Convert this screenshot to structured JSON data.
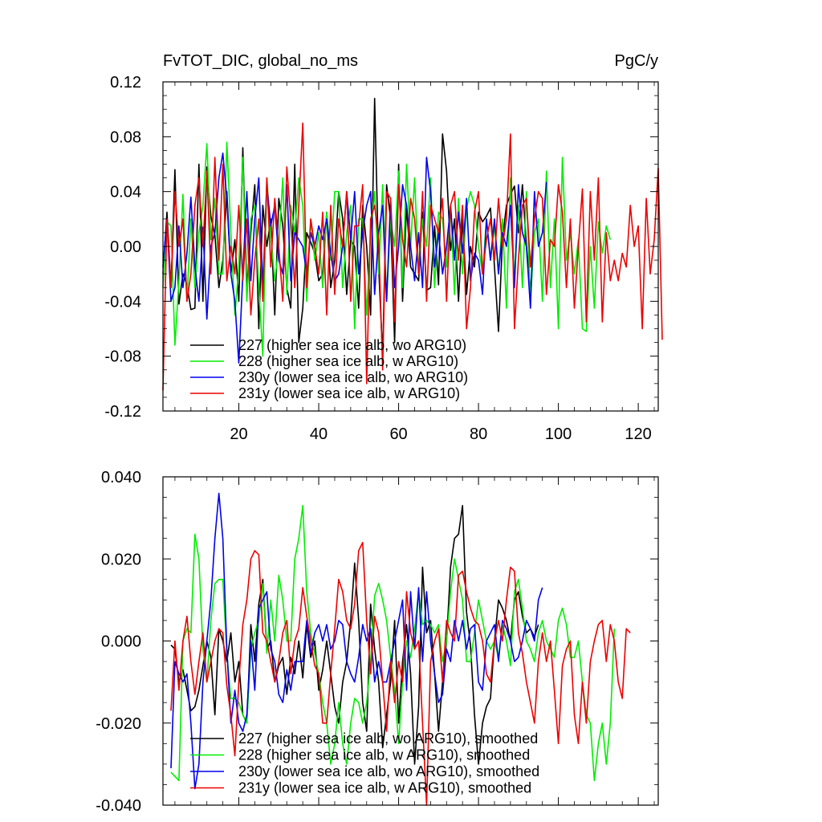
{
  "figure": {
    "title_left": "FvTOT_DIC, global_no_ms",
    "title_right": "PgC/y"
  },
  "chart_data": [
    {
      "type": "line",
      "title": "FvTOT_DIC, global_no_ms",
      "units": "PgC/y",
      "xlim": [
        1,
        125
      ],
      "ylim": [
        -0.12,
        0.12
      ],
      "xticks": [
        20,
        40,
        60,
        80,
        100,
        120
      ],
      "xtick_labels": [
        "20",
        "40",
        "60",
        "80",
        "100",
        "120"
      ],
      "yticks": [
        -0.12,
        -0.08,
        -0.04,
        0.0,
        0.04,
        0.08,
        0.12
      ],
      "ytick_labels": [
        "-0.12",
        "-0.08",
        "-0.04",
        "0.00",
        "0.04",
        "0.08",
        "0.12"
      ],
      "legend_position": "bottom-left",
      "series": [
        {
          "name": "227 (higher sea ice alb, wo ARG10)",
          "color": "#000000",
          "x_start": 1,
          "values": [
            -0.02,
            0.025,
            -0.03,
            0.056,
            -0.042,
            -0.02,
            -0.028,
            -0.046,
            -0.045,
            0.06,
            -0.04,
            0.058,
            0.022,
            0.008,
            -0.03,
            -0.01,
            0.04,
            -0.02,
            0.005,
            -0.04,
            0.072,
            -0.03,
            0.01,
            0.045,
            -0.06,
            0.03,
            0.0,
            0.02,
            -0.05,
            0.035,
            0.015,
            -0.03,
            -0.045,
            0.06,
            -0.07,
            -0.045,
            0.01,
            0.003,
            -0.005,
            -0.025,
            -0.02,
            0.025,
            -0.03,
            -0.01,
            0.04,
            0.02,
            -0.035,
            0.005,
            0.0,
            -0.045,
            0.03,
            0.0,
            -0.05,
            0.108,
            -0.015,
            -0.08,
            0.045,
            0.02,
            -0.07,
            0.06,
            -0.04,
            0.03,
            -0.015,
            -0.02,
            -0.025,
            0.025,
            -0.032,
            -0.03,
            0.015,
            -0.028,
            0.082,
            0.055,
            -0.003,
            0.02,
            -0.04,
            0.02,
            -0.035,
            0.0,
            -0.015,
            0.025,
            0.018,
            0.022,
            0.028,
            -0.015,
            -0.062,
            0.005,
            0.03,
            0.038,
            0.044,
            0.01,
            0.045,
            0.0,
            -0.03
          ]
        },
        {
          "name": "228 (higher sea ice alb, w ARG10)",
          "color": "#00ee00",
          "x_start": 1,
          "values": [
            -0.03,
            0.018,
            0.015,
            -0.072,
            -0.025,
            0.038,
            -0.04,
            0.02,
            -0.03,
            0.01,
            0.03,
            0.075,
            0.005,
            0.035,
            -0.02,
            -0.02,
            0.076,
            0.01,
            -0.05,
            -0.015,
            0.065,
            -0.04,
            0.02,
            0.03,
            -0.03,
            -0.08,
            0.05,
            0.008,
            -0.025,
            0.0,
            0.05,
            -0.035,
            0.03,
            0.01,
            0.05,
            0.03,
            -0.04,
            0.02,
            -0.01,
            0.01,
            -0.03,
            0.025,
            -0.01,
            0.04,
            0.04,
            -0.03,
            0.01,
            0.03,
            -0.06,
            0.02,
            0.02,
            -0.05,
            0.01,
            0.04,
            -0.02,
            0.045,
            -0.04,
            0.02,
            0.0,
            0.055,
            -0.03,
            0.06,
            0.0,
            0.05,
            -0.02,
            0.02,
            0.0,
            0.05,
            -0.03,
            0.025,
            0.02,
            -0.015,
            0.03,
            -0.035,
            0.035,
            -0.02,
            0.028,
            0.04,
            0.03,
            0.0,
            -0.02,
            0.02,
            -0.01,
            0.015,
            -0.02,
            0.02,
            -0.045,
            0.05,
            -0.025,
            0.03,
            -0.03,
            0.04,
            -0.04,
            0.01,
            0.02,
            -0.04,
            0.055,
            -0.03,
            0.02,
            -0.06,
            0.065,
            -0.01,
            0.01,
            -0.02,
            0.005,
            -0.06,
            -0.062,
            0.0,
            -0.045,
            0.018,
            -0.005,
            0.015,
            0.005
          ]
        },
        {
          "name": "230y (lower sea ice alb, wo ARG10)",
          "color": "#0000ee",
          "x_start": 1,
          "values": [
            -0.015,
            0.02,
            -0.04,
            -0.03,
            0.015,
            -0.03,
            -0.005,
            0.036,
            -0.015,
            -0.04,
            0.014,
            -0.053,
            0.0,
            0.01,
            0.05,
            0.068,
            0.035,
            -0.02,
            -0.04,
            -0.085,
            -0.02,
            0.04,
            -0.025,
            0.02,
            0.05,
            -0.03,
            0.045,
            0.015,
            0.03,
            -0.01,
            -0.02,
            0.045,
            -0.025,
            0.01,
            0.005,
            0.0,
            -0.02,
            0.01,
            0.0,
            0.015,
            0.005,
            0.02,
            -0.005,
            -0.025,
            -0.02,
            0.0,
            0.04,
            0.005,
            0.04,
            -0.02,
            0.01,
            0.03,
            0.04,
            -0.035,
            0.01,
            0.03,
            -0.04,
            0.035,
            -0.03,
            0.0,
            0.045,
            0.03,
            0.0,
            -0.025,
            0.01,
            -0.03,
            0.065,
            0.04,
            -0.015,
            0.01,
            -0.02,
            0.0,
            0.03,
            -0.01,
            0.025,
            -0.005,
            0.035,
            -0.025,
            -0.005,
            -0.01,
            -0.035,
            0.02,
            -0.01,
            0.02,
            -0.02,
            0.01,
            0.0,
            0.03,
            -0.03,
            0.045,
            0.01,
            0.0,
            -0.045,
            0.04,
            0.0,
            0.01,
            0.047
          ]
        },
        {
          "name": "231y (lower sea ice alb, w ARG10)",
          "color": "#ee0000",
          "x_start": 1,
          "values": [
            -0.105,
            0.02,
            -0.03,
            0.04,
            0.0,
            0.02,
            -0.04,
            -0.02,
            0.03,
            0.05,
            0.0,
            0.055,
            -0.02,
            0.065,
            -0.01,
            0.06,
            -0.025,
            0.0,
            -0.02,
            0.03,
            -0.025,
            0.02,
            -0.05,
            -0.01,
            0.02,
            -0.04,
            0.05,
            -0.015,
            0.035,
            0.0,
            -0.04,
            0.058,
            0.02,
            -0.03,
            0.03,
            0.09,
            -0.03,
            0.02,
            0.0,
            -0.02,
            0.025,
            -0.05,
            0.03,
            -0.035,
            0.02,
            0.0,
            0.04,
            -0.04,
            0.015,
            0.015,
            0.045,
            -0.1,
            0.02,
            0.03,
            0.005,
            -0.09,
            0.04,
            0.035,
            -0.055,
            0.045,
            0.005,
            -0.015,
            0.035,
            0.02,
            -0.02,
            0.04,
            -0.04,
            0.03,
            0.02,
            0.01,
            0.035,
            -0.04,
            0.03,
            0.04,
            -0.01,
            0.03,
            -0.06,
            -0.03,
            0.025,
            0.04,
            -0.02,
            0.005,
            0.02,
            -0.01,
            0.035,
            0.0,
            0.02,
            0.082,
            -0.06,
            -0.01,
            0.03,
            0.035,
            -0.015,
            0.02,
            0.04,
            0.035,
            -0.035,
            0.005,
            0.0,
            0.045,
            0.025,
            -0.03,
            0.02,
            -0.045,
            0.0,
            0.042,
            -0.055,
            0.04,
            -0.01,
            0.05,
            -0.055,
            0.01,
            -0.025,
            -0.01,
            -0.025,
            -0.005,
            -0.015,
            0.03,
            0.0,
            0.015,
            -0.06,
            0.035,
            -0.02,
            0.005,
            0.057,
            -0.068
          ]
        }
      ]
    },
    {
      "type": "line",
      "title": "",
      "xlim": [
        1,
        125
      ],
      "ylim": [
        -0.04,
        0.04
      ],
      "xticks": [
        20,
        40,
        60,
        80,
        100,
        120
      ],
      "xtick_labels": [],
      "yticks": [
        -0.04,
        -0.02,
        0.0,
        0.02,
        0.04
      ],
      "ytick_labels": [
        "-0.040",
        "-0.020",
        "0.000",
        "0.020",
        "0.040"
      ],
      "legend_position": "bottom-left",
      "series": [
        {
          "name": "227 (higher sea ice alb, wo ARG10), smoothed",
          "color": "#000000",
          "x_start": 3,
          "values": [
            -0.001,
            -0.002,
            -0.01,
            -0.007,
            -0.012,
            -0.017,
            -0.016,
            -0.012,
            -0.006,
            0.0,
            -0.004,
            -0.018,
            0.003,
            0.0,
            -0.005,
            0.002,
            -0.01,
            -0.005,
            -0.018,
            -0.02,
            0.004,
            -0.005,
            0.009,
            0.015,
            -0.002,
            0.0,
            -0.01,
            -0.006,
            -0.004,
            -0.013,
            -0.004,
            -0.008,
            0.0,
            -0.009,
            0.004,
            -0.004,
            0.0,
            -0.012,
            -0.007,
            0.0,
            -0.008,
            -0.016,
            -0.02,
            -0.01,
            -0.005,
            0.005,
            0.019,
            0.005,
            -0.015,
            -0.022,
            0.009,
            -0.002,
            -0.01,
            -0.026,
            -0.018,
            -0.01,
            0.005,
            -0.02,
            -0.005,
            0.004,
            -0.008,
            -0.03,
            -0.016,
            0.018,
            0.002,
            0.005,
            -0.008,
            -0.022,
            -0.01,
            0.0,
            0.018,
            0.025,
            0.026,
            0.033,
            0.007,
            -0.001,
            -0.018,
            -0.03,
            -0.02,
            -0.016,
            -0.014,
            0.0,
            0.01,
            0.008,
            0.005,
            0.0,
            0.01,
            0.012,
            0.006,
            0.002,
            0.003,
            0.001,
            0.004
          ]
        },
        {
          "name": "228 (higher sea ice alb, w ARG10), smoothed",
          "color": "#00ee00",
          "x_start": 3,
          "values": [
            -0.032,
            -0.033,
            -0.034,
            0.0,
            0.003,
            0.002,
            0.026,
            0.02,
            -0.002,
            -0.01,
            0.005,
            0.014,
            0.015,
            0.015,
            -0.003,
            -0.014,
            -0.014,
            -0.015,
            -0.018,
            -0.02,
            -0.002,
            0.002,
            0.005,
            0.014,
            -0.003,
            0.01,
            0.0,
            0.016,
            0.01,
            0.0,
            0.0,
            0.02,
            0.025,
            0.033,
            0.012,
            0.002,
            -0.003,
            -0.008,
            -0.015,
            -0.02,
            -0.03,
            -0.025,
            -0.015,
            -0.025,
            -0.03,
            -0.02,
            -0.014,
            -0.015,
            -0.02,
            -0.015,
            -0.005,
            0.011,
            0.014,
            0.01,
            0.005,
            -0.004,
            -0.012,
            -0.025,
            -0.01,
            0.0,
            -0.004,
            0.003,
            0.012,
            0.004,
            0.005,
            0.004,
            0.002,
            0.004,
            -0.005,
            0.0,
            0.012,
            0.02,
            0.015,
            0.01,
            -0.005,
            -0.005,
            0.002,
            0.01,
            0.005,
            0.0,
            -0.002,
            0.0,
            -0.004,
            0.004,
            0.0,
            -0.006,
            0.012,
            0.015,
            0.008,
            0.0,
            -0.002,
            -0.005,
            0.002,
            0.005,
            0.0,
            -0.002,
            -0.004,
            0.005,
            0.008,
            0.004,
            -0.004,
            -0.004,
            0.0,
            -0.01,
            -0.018,
            -0.02,
            -0.034,
            -0.025,
            -0.02,
            -0.03,
            -0.02,
            0.003
          ]
        },
        {
          "name": "230y (lower sea ice alb, wo ARG10), smoothed",
          "color": "#0000ee",
          "x_start": 3,
          "values": [
            -0.031,
            -0.005,
            -0.008,
            -0.01,
            -0.008,
            -0.02,
            -0.036,
            -0.03,
            -0.01,
            0.0,
            0.01,
            0.025,
            0.036,
            0.025,
            -0.002,
            -0.02,
            -0.012,
            -0.02,
            -0.022,
            -0.018,
            0.0,
            -0.012,
            0.008,
            0.01,
            0.012,
            -0.002,
            -0.005,
            -0.013,
            -0.015,
            -0.007,
            -0.012,
            -0.005,
            -0.005,
            -0.005,
            0.005,
            -0.003,
            0.002,
            0.004,
            0.0,
            0.004,
            -0.002,
            0.0,
            0.005,
            0.004,
            -0.005,
            -0.008,
            -0.01,
            -0.004,
            0.004,
            0.0,
            0.003,
            -0.01,
            -0.005,
            -0.01,
            -0.01,
            -0.005,
            0.0,
            0.005,
            0.01,
            -0.012,
            0.012,
            -0.002,
            0.013,
            -0.005,
            0.012,
            0.0,
            -0.008,
            -0.015,
            -0.013,
            -0.002,
            -0.005,
            0.005,
            0.0,
            0.005,
            -0.002,
            0.003,
            0.004,
            -0.01,
            -0.012,
            0.0,
            0.002,
            0.004,
            -0.005,
            0.005,
            0.003,
            0.0,
            -0.005,
            -0.004,
            0.0,
            0.005,
            0.003,
            0.0,
            0.01,
            0.013
          ]
        },
        {
          "name": "231y (lower sea ice alb, w ARG10), smoothed",
          "color": "#ee0000",
          "x_start": 3,
          "values": [
            -0.017,
            0.0,
            -0.012,
            0.0,
            0.006,
            -0.005,
            -0.013,
            -0.005,
            0.002,
            -0.01,
            -0.005,
            0.0,
            0.003,
            0.002,
            -0.011,
            -0.018,
            -0.028,
            -0.01,
            0.004,
            0.01,
            0.02,
            0.022,
            0.021,
            0.002,
            0.0,
            -0.005,
            -0.01,
            -0.005,
            0.002,
            0.005,
            -0.008,
            0.0,
            0.003,
            0.013,
            0.006,
            0.0,
            -0.006,
            -0.008,
            -0.02,
            -0.02,
            -0.008,
            0.003,
            0.015,
            0.012,
            0.005,
            0.003,
            0.009,
            0.022,
            0.024,
            0.005,
            -0.008,
            0.006,
            0.002,
            -0.01,
            -0.022,
            -0.005,
            -0.015,
            -0.005,
            -0.01,
            0.012,
            0.002,
            -0.002,
            0.0,
            -0.02,
            -0.04,
            -0.005,
            0.0,
            0.003,
            -0.01,
            0.005,
            0.002,
            0.0,
            0.016,
            0.017,
            0.012,
            0.008,
            0.005,
            0.004,
            0.0,
            -0.008,
            -0.01,
            0.0,
            0.005,
            0.0,
            0.01,
            0.018,
            0.017,
            0.002,
            -0.003,
            -0.01,
            -0.015,
            -0.02,
            -0.005,
            0.002,
            -0.005,
            0.0,
            -0.012,
            -0.025,
            -0.006,
            -0.002,
            0.0,
            -0.018,
            -0.025,
            -0.01,
            -0.02,
            -0.005,
            0.0,
            0.004,
            0.005,
            -0.005,
            0.004,
            0.0,
            -0.01,
            -0.014,
            0.003,
            0.002
          ]
        }
      ]
    }
  ]
}
